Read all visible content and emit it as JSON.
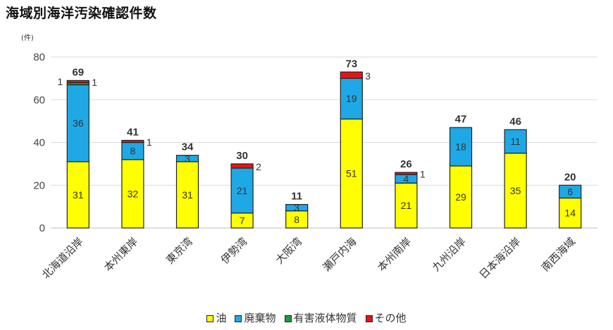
{
  "title": "海域別海洋汚染確認件数",
  "chart_data": {
    "type": "bar",
    "stacked": true,
    "unit_label": "(件)",
    "ylim": [
      0,
      80
    ],
    "yticks": [
      0,
      20,
      40,
      60,
      80
    ],
    "grid": true,
    "legend_position": "bottom",
    "categories": [
      "北海道沿岸",
      "本州東岸",
      "東京湾",
      "伊勢湾",
      "大阪湾",
      "瀬戸内海",
      "本州南岸",
      "九州沿岸",
      "日本海沿岸",
      "南西海域"
    ],
    "series": [
      {
        "name": "油",
        "color": "#ffff00",
        "values": [
          31,
          32,
          31,
          7,
          8,
          51,
          21,
          29,
          35,
          14
        ]
      },
      {
        "name": "廃棄物",
        "color": "#1ea9e6",
        "values": [
          36,
          8,
          3,
          21,
          3,
          19,
          4,
          18,
          11,
          6
        ]
      },
      {
        "name": "有害液体物質",
        "color": "#1a9a3f",
        "values": [
          1,
          0,
          0,
          0,
          0,
          0,
          0,
          0,
          0,
          0
        ]
      },
      {
        "name": "その他",
        "color": "#ee1111",
        "values": [
          1,
          1,
          0,
          2,
          0,
          3,
          1,
          0,
          0,
          0
        ]
      }
    ],
    "totals": [
      69,
      41,
      34,
      30,
      11,
      73,
      26,
      47,
      46,
      20
    ]
  }
}
